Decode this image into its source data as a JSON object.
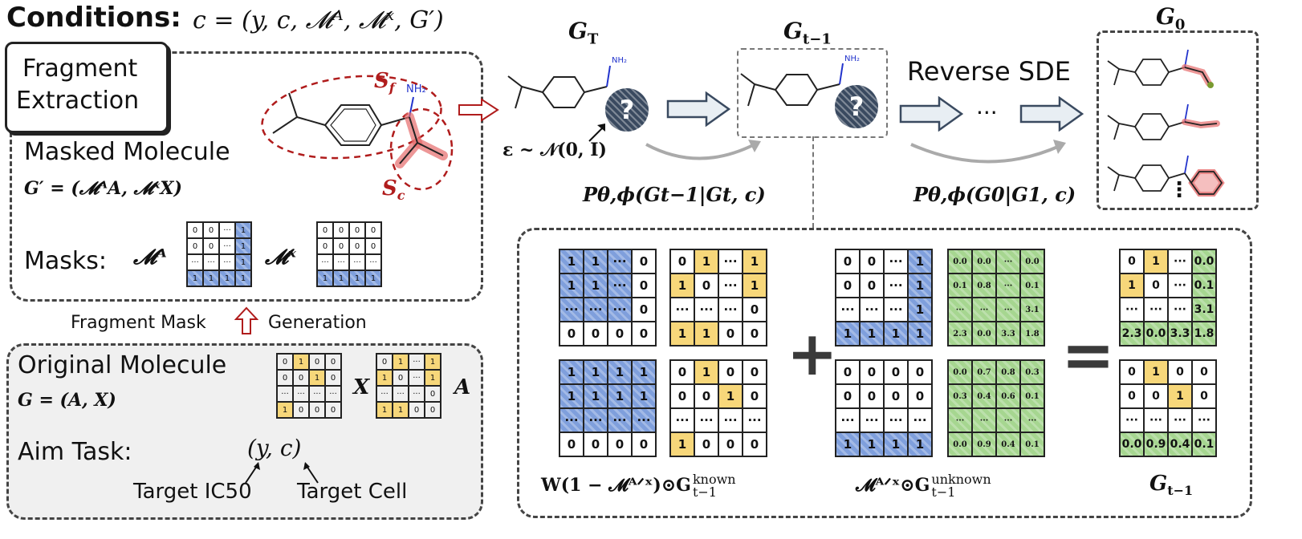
{
  "conditions": {
    "label": "Conditions:",
    "formula": "c = (y, c, 𝓜ᴬ, 𝓜ˣ, G′)"
  },
  "fragment": {
    "title_line1": "Fragment",
    "title_line2": "Extraction",
    "masked_molecule": "Masked Molecule",
    "masked_formula": "G′ = (𝓜ᴬA, 𝓜ˣX)",
    "sf": "S",
    "sf_sub": "f",
    "sc": "S",
    "sc_sub": "c",
    "nh2": "NH₂",
    "masks_label": "Masks:",
    "ma_label": "𝓜ᴬ",
    "mx_label": "𝓜ˣ"
  },
  "mask_gen": {
    "left": "Fragment Mask",
    "right": "Generation"
  },
  "original": {
    "title": "Original  Molecule",
    "formula": "G = (A, X)",
    "x_label": "X",
    "a_label": "A",
    "aim_task": "Aim Task:",
    "aim_formula": "(y,  c)",
    "target_ic50": "Target IC50",
    "target_cell": "Target Cell"
  },
  "diffusion": {
    "gt_label": "G",
    "gt_sub": "T",
    "gt1_label": "G",
    "gt1_sub": "t−1",
    "g0_label": "G",
    "g0_sub": "0",
    "noise": "ε ~ 𝒩(0, I)",
    "reverse_sde": "Reverse SDE",
    "ellipsis": "···",
    "p_left": "Pθ,ϕ(Gt−1|Gt, c)",
    "p_right": "Pθ,ϕ(G0|G1, c)",
    "q_mark": "?",
    "vdots": "⋮"
  },
  "bottom": {
    "plus": "+",
    "equals": "=",
    "cap_left": "W(1 − 𝓜ᴬᐟˣ)⊙G",
    "cap_left_sup": "known",
    "cap_left_sub": "t−1",
    "cap_mid": "𝓜ᴬᐟˣ⊙G",
    "cap_mid_sup": "unknown",
    "cap_mid_sub": "t−1",
    "cap_right": "G",
    "cap_right_sub": "t−1"
  },
  "matrices": {
    "ma_small": [
      [
        "0",
        "0",
        "···",
        "1"
      ],
      [
        "0",
        "0",
        "···",
        "1"
      ],
      [
        "···",
        "···",
        "···",
        "1"
      ],
      [
        "1",
        "1",
        "1",
        "1"
      ]
    ],
    "mx_small": [
      [
        "0",
        "0",
        "0",
        "0"
      ],
      [
        "0",
        "0",
        "0",
        "0"
      ],
      [
        "···",
        "···",
        "···",
        "···"
      ],
      [
        "1",
        "1",
        "1",
        "1"
      ]
    ],
    "x_small": [
      [
        "0",
        "1",
        "0",
        "0"
      ],
      [
        "0",
        "0",
        "1",
        "0"
      ],
      [
        "···",
        "···",
        "···",
        "···"
      ],
      [
        "1",
        "0",
        "0",
        "0"
      ]
    ],
    "a_small": [
      [
        "0",
        "1",
        "···",
        "1"
      ],
      [
        "1",
        "0",
        "···",
        "1"
      ],
      [
        "···",
        "···",
        "···",
        "0"
      ],
      [
        "1",
        "1",
        "0",
        "0"
      ]
    ],
    "w_top": [
      [
        "1",
        "1",
        "···",
        "0"
      ],
      [
        "1",
        "1",
        "···",
        "0"
      ],
      [
        "···",
        "···",
        "···",
        "0"
      ],
      [
        "0",
        "0",
        "0",
        "0"
      ]
    ],
    "w_bot": [
      [
        "1",
        "1",
        "1",
        "1"
      ],
      [
        "1",
        "1",
        "1",
        "1"
      ],
      [
        "···",
        "···",
        "···",
        "···"
      ],
      [
        "0",
        "0",
        "0",
        "0"
      ]
    ],
    "gk_top": [
      [
        "0",
        "1",
        "···",
        "1"
      ],
      [
        "1",
        "0",
        "···",
        "1"
      ],
      [
        "···",
        "···",
        "···",
        "0"
      ],
      [
        "1",
        "1",
        "0",
        "0"
      ]
    ],
    "gk_bot": [
      [
        "0",
        "1",
        "0",
        "0"
      ],
      [
        "0",
        "0",
        "1",
        "0"
      ],
      [
        "···",
        "···",
        "···",
        "···"
      ],
      [
        "1",
        "0",
        "0",
        "0"
      ]
    ],
    "m_top": [
      [
        "0",
        "0",
        "···",
        "1"
      ],
      [
        "0",
        "0",
        "···",
        "1"
      ],
      [
        "···",
        "···",
        "···",
        "1"
      ],
      [
        "1",
        "1",
        "1",
        "1"
      ]
    ],
    "m_bot": [
      [
        "0",
        "0",
        "0",
        "0"
      ],
      [
        "0",
        "0",
        "0",
        "0"
      ],
      [
        "···",
        "···",
        "···",
        "···"
      ],
      [
        "1",
        "1",
        "1",
        "1"
      ]
    ],
    "gu_top": [
      [
        "0.0",
        "0.0",
        "···",
        "0.0"
      ],
      [
        "0.1",
        "0.8",
        "···",
        "0.1"
      ],
      [
        "···",
        "···",
        "···",
        "3.1"
      ],
      [
        "2.3",
        "0.0",
        "3.3",
        "1.8"
      ]
    ],
    "gu_bot": [
      [
        "0.0",
        "0.7",
        "0.8",
        "0.3"
      ],
      [
        "0.3",
        "0.4",
        "0.6",
        "0.1"
      ],
      [
        "···",
        "···",
        "···",
        "···"
      ],
      [
        "0.0",
        "0.9",
        "0.4",
        "0.1"
      ]
    ],
    "r_top": [
      [
        "0",
        "1",
        "···",
        "0.0"
      ],
      [
        "1",
        "0",
        "···",
        "0.1"
      ],
      [
        "···",
        "···",
        "···",
        "3.1"
      ],
      [
        "2.3",
        "0.0",
        "3.3",
        "1.8"
      ]
    ],
    "r_bot": [
      [
        "0",
        "1",
        "0",
        "0"
      ],
      [
        "0",
        "0",
        "1",
        "0"
      ],
      [
        "···",
        "···",
        "···",
        "···"
      ],
      [
        "0.0",
        "0.9",
        "0.4",
        "0.1"
      ]
    ]
  },
  "colors": {
    "blue": "#7f9fdc",
    "yellow": "#f7d77a",
    "green": "#a6d690",
    "red": "#e56b6b",
    "dark_red": "#b01c1c"
  }
}
